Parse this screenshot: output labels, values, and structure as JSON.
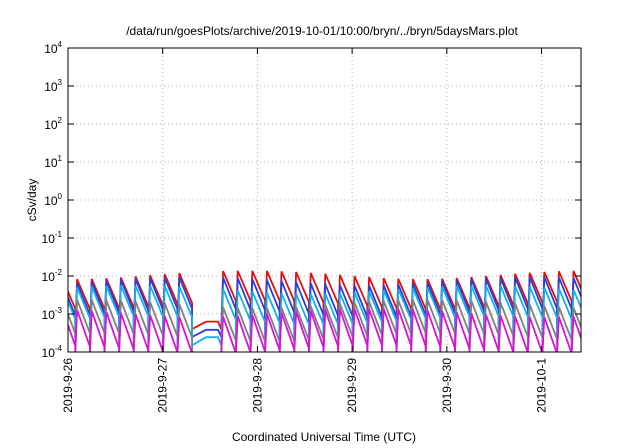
{
  "chart_data": {
    "type": "line",
    "title": "/data/run/goesPlots/archive/2019-10-01/10:00/bryn/../bryn/5daysMars.plot",
    "xlabel": "Coordinated Universal Time (UTC)",
    "ylabel": "cSv/day",
    "yscale": "log",
    "ylim": [
      0.0001,
      10000
    ],
    "y_ticks": [
      {
        "mantissa": "10",
        "exp": "-4",
        "value": 0.0001
      },
      {
        "mantissa": "10",
        "exp": "-3",
        "value": 0.001
      },
      {
        "mantissa": "10",
        "exp": "-2",
        "value": 0.01
      },
      {
        "mantissa": "10",
        "exp": "-1",
        "value": 0.1
      },
      {
        "mantissa": "10",
        "exp": "0",
        "value": 1
      },
      {
        "mantissa": "10",
        "exp": "1",
        "value": 10
      },
      {
        "mantissa": "10",
        "exp": "2",
        "value": 100
      },
      {
        "mantissa": "10",
        "exp": "3",
        "value": 1000
      },
      {
        "mantissa": "10",
        "exp": "4",
        "value": 10000
      }
    ],
    "xlim": [
      "2019-09-26",
      "2019-10-01T10:00"
    ],
    "x_ticks": [
      "2019-9-26",
      "2019-9-27",
      "2019-9-28",
      "2019-9-29",
      "2019-9-30",
      "2019-10-1"
    ],
    "grid": true,
    "pattern": "sawtooth",
    "period_hours": 3.7,
    "gap": {
      "start": "2019-09-27T11:00",
      "end": "2019-09-27T14:00"
    },
    "series": [
      {
        "color": "#e01010",
        "peak": 0.011,
        "floor": 0.0018,
        "drop": 0.0004
      },
      {
        "color": "#2a3fd8",
        "peak": 0.0075,
        "floor": 0.0011,
        "drop": 0.00025
      },
      {
        "color": "#15b0ec",
        "peak": 0.0045,
        "floor": 0.0007,
        "drop": 0.00015
      },
      {
        "color": "#808080",
        "peak": 0.0019,
        "floor": 0.00025,
        "drop": 0.0001
      },
      {
        "color": "#d515d5",
        "peak": 0.0011,
        "floor": 0.00012,
        "drop": 0.0001
      }
    ]
  }
}
